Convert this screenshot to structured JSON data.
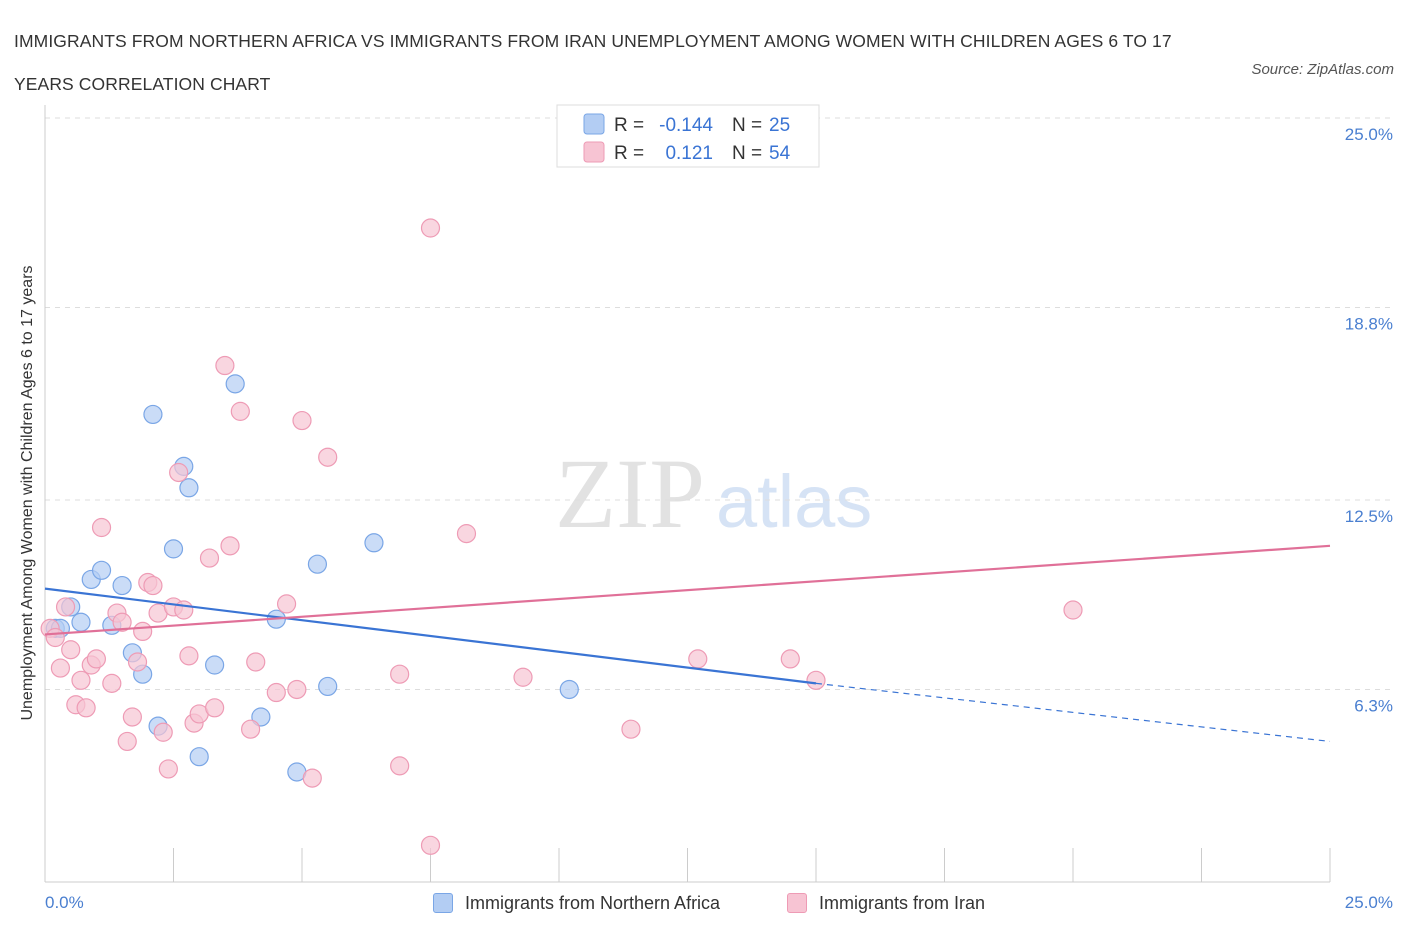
{
  "title": "IMMIGRANTS FROM NORTHERN AFRICA VS IMMIGRANTS FROM IRAN UNEMPLOYMENT AMONG WOMEN WITH CHILDREN AGES 6 TO 17 YEARS CORRELATION CHART",
  "source": "Source: ZipAtlas.com",
  "watermark": {
    "zip": "ZIP",
    "atlas": "atlas"
  },
  "colors": {
    "blue_fill": "#b3cdf3",
    "blue_stroke": "#7aa6e6",
    "blue_line": "#3a74d4",
    "pink_fill": "#f7c4d3",
    "pink_stroke": "#ee9bb5",
    "pink_line": "#e07098",
    "value_text": "#3a74d4",
    "grid": "#dddddd"
  },
  "stats": [
    {
      "r_label": "R =",
      "r_value": "-0.144",
      "n_label": "N =",
      "n_value": "25"
    },
    {
      "r_label": "R =",
      "r_value": "0.121",
      "n_label": "N =",
      "n_value": "54"
    }
  ],
  "chart_data": {
    "type": "scatter",
    "xlabel": "",
    "ylabel": "Unemployment Among Women with Children Ages 6 to 17 years",
    "xlim": [
      0,
      25
    ],
    "ylim": [
      0,
      25
    ],
    "x_tick_labels": [
      "0.0%",
      "25.0%"
    ],
    "y_ticks": [
      {
        "value": 6.3,
        "label": "6.3%"
      },
      {
        "value": 12.5,
        "label": "12.5%"
      },
      {
        "value": 18.8,
        "label": "18.8%"
      },
      {
        "value": 25.0,
        "label": "25.0%"
      }
    ],
    "grid": true,
    "legend_position": "bottom",
    "series": [
      {
        "name": "Immigrants from Northern Africa",
        "color": "#b3cdf3",
        "r": -0.144,
        "n": 25,
        "trend": {
          "x": [
            0,
            15
          ],
          "y": [
            9.6,
            6.5
          ],
          "dashed_to": [
            25,
            4.6
          ]
        },
        "points": [
          [
            0.2,
            8.3
          ],
          [
            0.3,
            8.3
          ],
          [
            0.5,
            9.0
          ],
          [
            0.7,
            8.5
          ],
          [
            0.9,
            9.9
          ],
          [
            1.1,
            10.2
          ],
          [
            1.3,
            8.4
          ],
          [
            1.5,
            9.7
          ],
          [
            1.7,
            7.5
          ],
          [
            1.9,
            6.8
          ],
          [
            2.1,
            15.3
          ],
          [
            2.2,
            5.1
          ],
          [
            2.5,
            10.9
          ],
          [
            2.7,
            13.6
          ],
          [
            2.8,
            12.9
          ],
          [
            3.0,
            4.1
          ],
          [
            3.3,
            7.1
          ],
          [
            3.7,
            16.3
          ],
          [
            4.2,
            5.4
          ],
          [
            4.5,
            8.6
          ],
          [
            4.9,
            3.6
          ],
          [
            5.3,
            10.4
          ],
          [
            5.5,
            6.4
          ],
          [
            6.4,
            11.1
          ],
          [
            10.2,
            6.3
          ]
        ]
      },
      {
        "name": "Immigrants from Iran",
        "color": "#f7c4d3",
        "r": 0.121,
        "n": 54,
        "trend": {
          "x": [
            0,
            25
          ],
          "y": [
            8.1,
            11.0
          ]
        },
        "points": [
          [
            0.1,
            8.3
          ],
          [
            0.2,
            8.0
          ],
          [
            0.3,
            7.0
          ],
          [
            0.4,
            9.0
          ],
          [
            0.5,
            7.6
          ],
          [
            0.6,
            5.8
          ],
          [
            0.7,
            6.6
          ],
          [
            0.8,
            5.7
          ],
          [
            0.9,
            7.1
          ],
          [
            1.0,
            7.3
          ],
          [
            1.1,
            11.6
          ],
          [
            1.3,
            6.5
          ],
          [
            1.4,
            8.8
          ],
          [
            1.5,
            8.5
          ],
          [
            1.6,
            4.6
          ],
          [
            1.7,
            5.4
          ],
          [
            1.8,
            7.2
          ],
          [
            1.9,
            8.2
          ],
          [
            2.0,
            9.8
          ],
          [
            2.1,
            9.7
          ],
          [
            2.2,
            8.8
          ],
          [
            2.3,
            4.9
          ],
          [
            2.4,
            3.7
          ],
          [
            2.5,
            9.0
          ],
          [
            2.6,
            13.4
          ],
          [
            2.7,
            8.9
          ],
          [
            2.8,
            7.4
          ],
          [
            2.9,
            5.2
          ],
          [
            3.0,
            5.5
          ],
          [
            3.2,
            10.6
          ],
          [
            3.3,
            5.7
          ],
          [
            3.5,
            16.9
          ],
          [
            3.6,
            11.0
          ],
          [
            3.8,
            15.4
          ],
          [
            4.0,
            5.0
          ],
          [
            4.1,
            7.2
          ],
          [
            4.5,
            6.2
          ],
          [
            4.7,
            9.1
          ],
          [
            4.9,
            6.3
          ],
          [
            5.0,
            15.1
          ],
          [
            5.2,
            3.4
          ],
          [
            5.5,
            13.9
          ],
          [
            6.9,
            3.8
          ],
          [
            6.9,
            6.8
          ],
          [
            7.5,
            21.4
          ],
          [
            7.5,
            1.2
          ],
          [
            8.2,
            11.4
          ],
          [
            9.3,
            6.7
          ],
          [
            11.0,
            24.4
          ],
          [
            11.4,
            5.0
          ],
          [
            12.7,
            7.3
          ],
          [
            14.5,
            7.3
          ],
          [
            15.0,
            6.6
          ],
          [
            20.0,
            8.9
          ]
        ]
      }
    ]
  }
}
